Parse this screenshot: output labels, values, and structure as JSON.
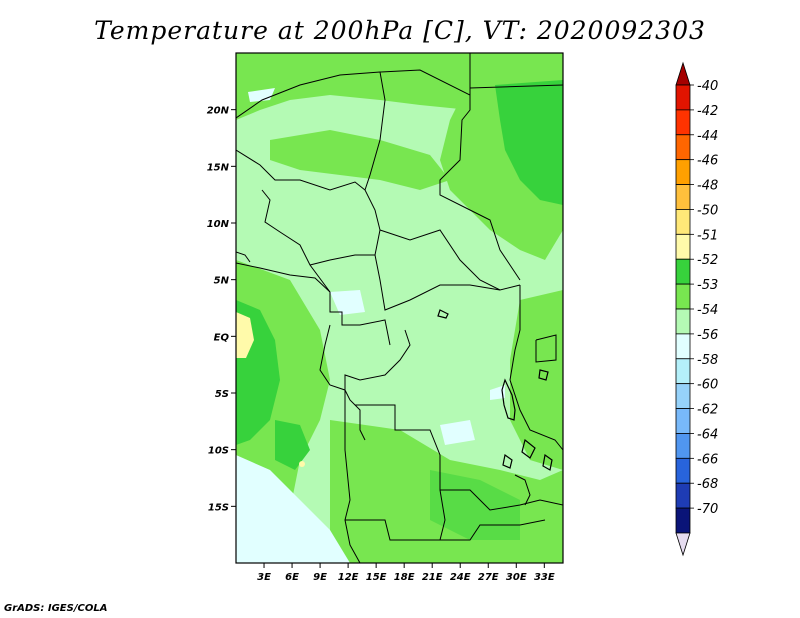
{
  "title": "Temperature at 200hPa [C], VT: 2020092303",
  "credit": "GrADS: IGES/COLA",
  "map": {
    "region": "Central Africa",
    "lat_range": [
      -20,
      25
    ],
    "lon_range": [
      0,
      35
    ],
    "lat_ticks": [
      {
        "value": 20,
        "label": "20N"
      },
      {
        "value": 15,
        "label": "15N"
      },
      {
        "value": 10,
        "label": "10N"
      },
      {
        "value": 5,
        "label": "5N"
      },
      {
        "value": 0,
        "label": "EQ"
      },
      {
        "value": -5,
        "label": "5S"
      },
      {
        "value": -10,
        "label": "10S"
      },
      {
        "value": -15,
        "label": "15S"
      }
    ],
    "lon_ticks": [
      {
        "value": 3,
        "label": "3E"
      },
      {
        "value": 6,
        "label": "6E"
      },
      {
        "value": 9,
        "label": "9E"
      },
      {
        "value": 12,
        "label": "12E"
      },
      {
        "value": 15,
        "label": "15E"
      },
      {
        "value": 18,
        "label": "18E"
      },
      {
        "value": 21,
        "label": "21E"
      },
      {
        "value": 24,
        "label": "24E"
      },
      {
        "value": 27,
        "label": "27E"
      },
      {
        "value": 30,
        "label": "30E"
      },
      {
        "value": 33,
        "label": "33E"
      }
    ]
  },
  "colorbar": {
    "labels": [
      "-40",
      "-42",
      "-44",
      "-46",
      "-48",
      "-50",
      "-51",
      "-52",
      "-53",
      "-54",
      "-56",
      "-58",
      "-60",
      "-62",
      "-64",
      "-66",
      "-68",
      "-70"
    ],
    "colors": [
      "#a50000",
      "#e11400",
      "#ff3300",
      "#ff6600",
      "#ffa000",
      "#ffc03c",
      "#ffe878",
      "#fffaaa",
      "#37d23c",
      "#78e650",
      "#b4fab4",
      "#e1ffff",
      "#b4f0fa",
      "#96d2fa",
      "#78b9fa",
      "#5096f0",
      "#2864dc",
      "#1e3cb4",
      "#0a1478",
      "#e6dcf0"
    ]
  },
  "legend_colors": {
    "min_52_to_53": "#37d23c",
    "min_53_to_54": "#78e650",
    "min_54_to_56": "#b4fab4",
    "min_56_to_58": "#e1ffff",
    "min_50_to_51": "#fffaaa"
  }
}
